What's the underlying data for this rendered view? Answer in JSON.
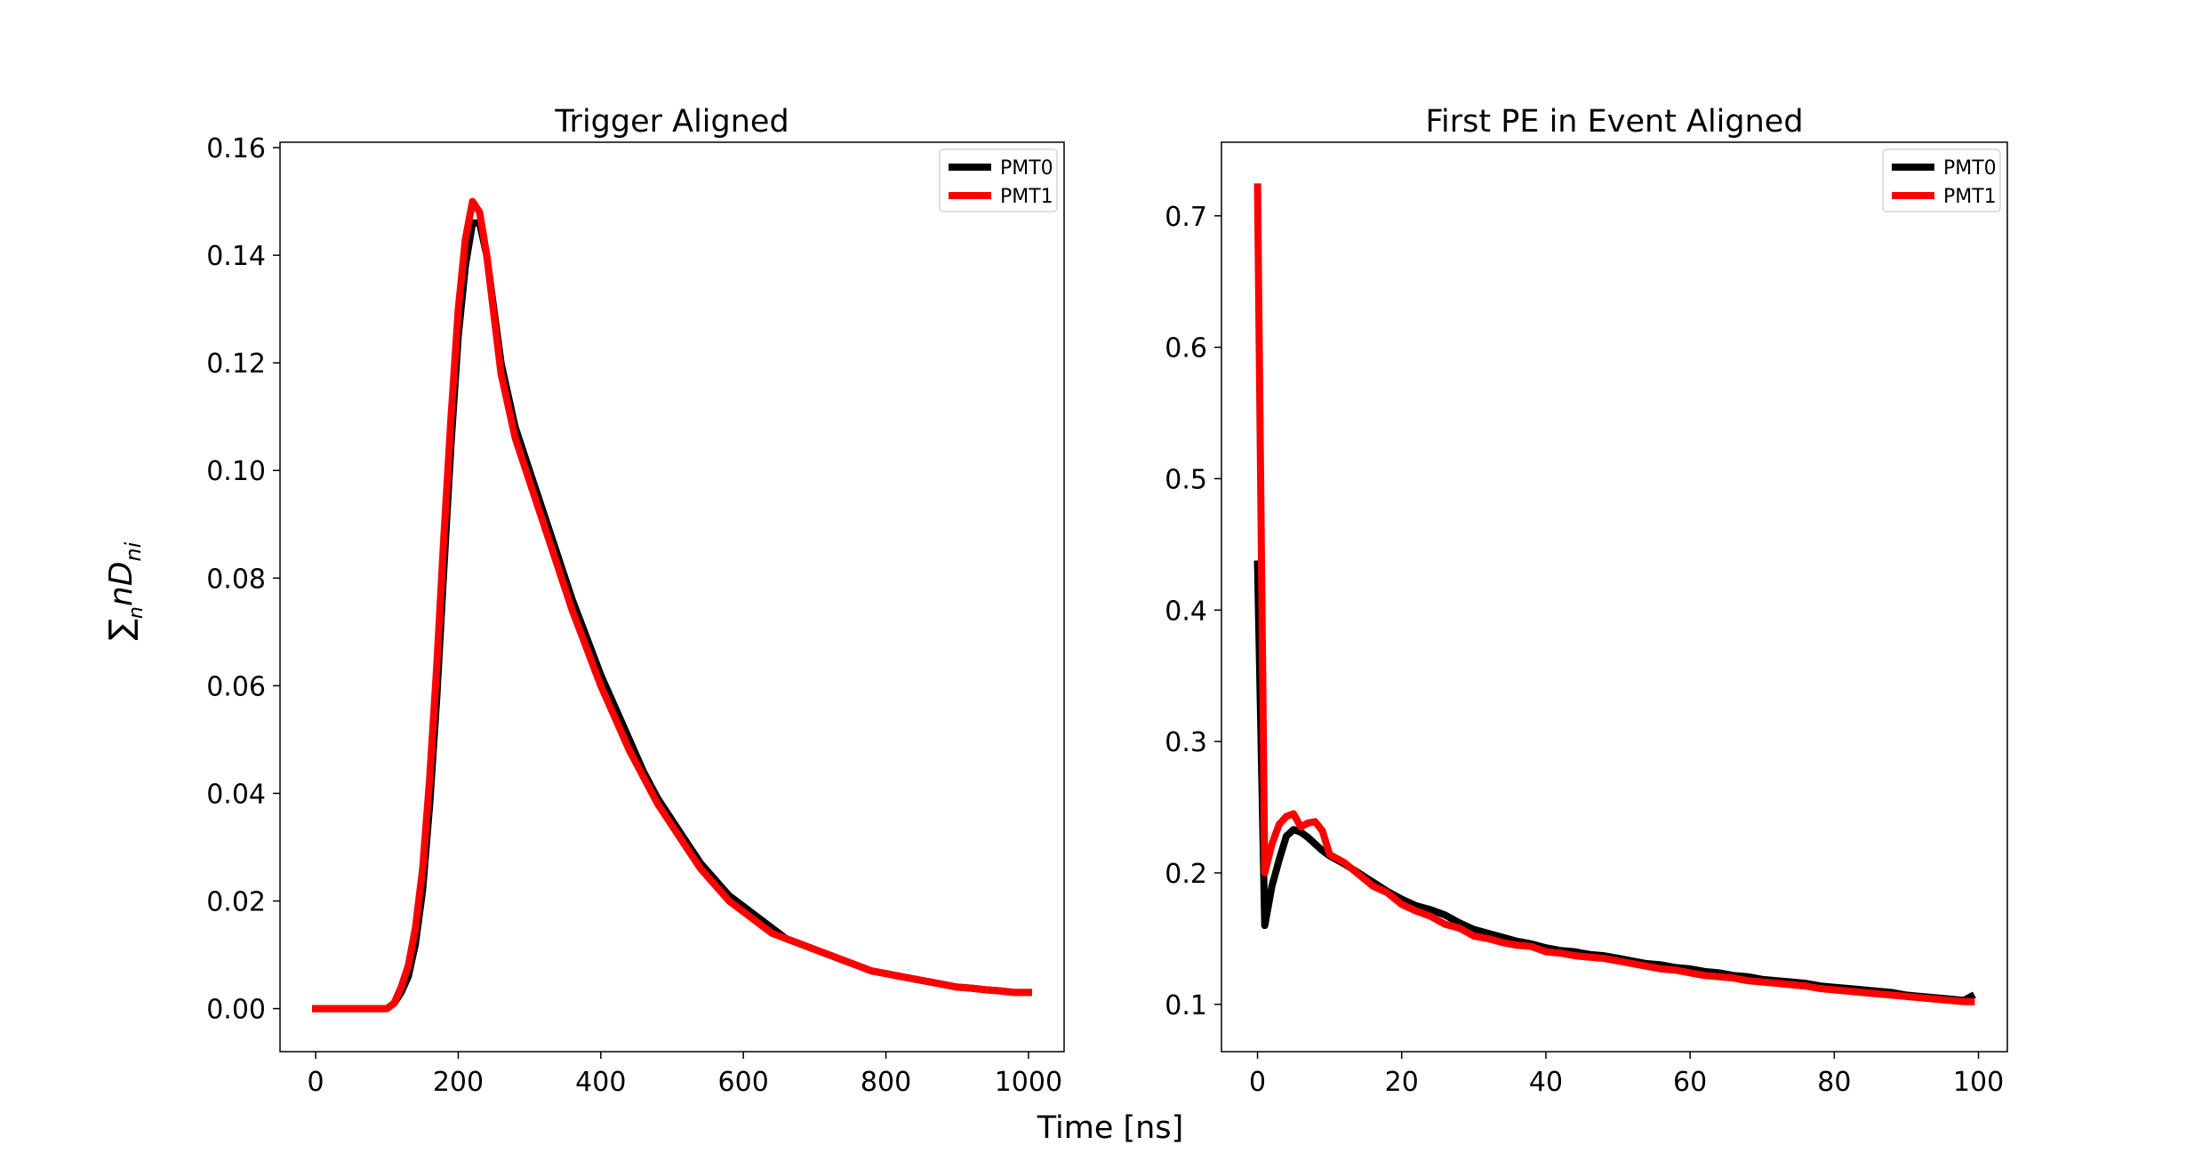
{
  "figure": {
    "xlabel": "Time [ns]",
    "ylabel": {
      "sum": "∑",
      "sub": "n",
      "main": "nD",
      "main_sub": "ni"
    }
  },
  "chart_data": [
    {
      "type": "line",
      "title": "Trigger Aligned",
      "xlim": [
        -50,
        1050
      ],
      "ylim": [
        -0.008,
        0.161
      ],
      "x_ticks": [
        0,
        200,
        400,
        600,
        800,
        1000
      ],
      "x_tick_labels": [
        "0",
        "200",
        "400",
        "600",
        "800",
        "1000"
      ],
      "y_ticks": [
        0.0,
        0.02,
        0.04,
        0.06,
        0.08,
        0.1,
        0.12,
        0.14,
        0.16
      ],
      "y_tick_labels": [
        "0.00",
        "0.02",
        "0.04",
        "0.06",
        "0.08",
        "0.10",
        "0.12",
        "0.14",
        "0.16"
      ],
      "grid": false,
      "legend": "top-right",
      "series": [
        {
          "name": "PMT0",
          "color": "#000000",
          "x": [
            0,
            50,
            100,
            110,
            120,
            130,
            140,
            150,
            160,
            170,
            180,
            190,
            200,
            210,
            220,
            230,
            240,
            250,
            260,
            280,
            300,
            320,
            340,
            360,
            380,
            400,
            420,
            440,
            460,
            480,
            500,
            520,
            540,
            560,
            580,
            600,
            620,
            640,
            660,
            680,
            700,
            720,
            740,
            760,
            780,
            800,
            820,
            840,
            860,
            880,
            900,
            920,
            940,
            960,
            980,
            1000
          ],
          "y": [
            0,
            0,
            0,
            0.001,
            0.003,
            0.006,
            0.012,
            0.022,
            0.038,
            0.058,
            0.082,
            0.105,
            0.125,
            0.138,
            0.146,
            0.146,
            0.14,
            0.13,
            0.12,
            0.108,
            0.1,
            0.092,
            0.084,
            0.076,
            0.069,
            0.062,
            0.056,
            0.05,
            0.044,
            0.039,
            0.035,
            0.031,
            0.027,
            0.024,
            0.021,
            0.019,
            0.017,
            0.015,
            0.013,
            0.012,
            0.011,
            0.01,
            0.009,
            0.008,
            0.007,
            0.0065,
            0.006,
            0.0055,
            0.005,
            0.0045,
            0.004,
            0.0038,
            0.0035,
            0.0033,
            0.003,
            0.003
          ]
        },
        {
          "name": "PMT1",
          "color": "#ff0000",
          "x": [
            0,
            50,
            100,
            110,
            120,
            130,
            140,
            150,
            160,
            170,
            180,
            190,
            200,
            210,
            220,
            230,
            240,
            250,
            260,
            280,
            300,
            320,
            340,
            360,
            380,
            400,
            420,
            440,
            460,
            480,
            500,
            520,
            540,
            560,
            580,
            600,
            620,
            640,
            660,
            680,
            700,
            720,
            740,
            760,
            780,
            800,
            820,
            840,
            860,
            880,
            900,
            920,
            940,
            960,
            980,
            1000
          ],
          "y": [
            0,
            0,
            0,
            0.001,
            0.004,
            0.008,
            0.015,
            0.026,
            0.043,
            0.064,
            0.088,
            0.11,
            0.13,
            0.143,
            0.15,
            0.148,
            0.14,
            0.129,
            0.118,
            0.106,
            0.098,
            0.09,
            0.082,
            0.074,
            0.067,
            0.06,
            0.054,
            0.048,
            0.043,
            0.038,
            0.034,
            0.03,
            0.026,
            0.023,
            0.02,
            0.018,
            0.016,
            0.014,
            0.013,
            0.012,
            0.011,
            0.01,
            0.009,
            0.008,
            0.007,
            0.0065,
            0.006,
            0.0055,
            0.005,
            0.0045,
            0.004,
            0.0038,
            0.0035,
            0.0033,
            0.003,
            0.003
          ]
        }
      ]
    },
    {
      "type": "line",
      "title": "First PE in Event Aligned",
      "xlim": [
        -5,
        104
      ],
      "ylim": [
        0.064,
        0.756
      ],
      "x_ticks": [
        0,
        20,
        40,
        60,
        80,
        100
      ],
      "x_tick_labels": [
        "0",
        "20",
        "40",
        "60",
        "80",
        "100"
      ],
      "y_ticks": [
        0.1,
        0.2,
        0.3,
        0.4,
        0.5,
        0.6,
        0.7
      ],
      "y_tick_labels": [
        "0.1",
        "0.2",
        "0.3",
        "0.4",
        "0.5",
        "0.6",
        "0.7"
      ],
      "grid": false,
      "legend": "top-right",
      "series": [
        {
          "name": "PMT0",
          "color": "#000000",
          "x": [
            0,
            1,
            2,
            3,
            4,
            5,
            6,
            7,
            8,
            9,
            10,
            12,
            14,
            16,
            18,
            20,
            22,
            24,
            26,
            28,
            30,
            32,
            34,
            36,
            38,
            40,
            42,
            44,
            46,
            48,
            50,
            52,
            54,
            56,
            58,
            60,
            62,
            64,
            66,
            68,
            70,
            72,
            74,
            76,
            78,
            80,
            82,
            84,
            86,
            88,
            90,
            92,
            94,
            96,
            98,
            99
          ],
          "y": [
            0.435,
            0.16,
            0.19,
            0.21,
            0.228,
            0.233,
            0.231,
            0.227,
            0.222,
            0.217,
            0.213,
            0.207,
            0.2,
            0.193,
            0.186,
            0.18,
            0.175,
            0.172,
            0.168,
            0.162,
            0.157,
            0.154,
            0.151,
            0.148,
            0.146,
            0.143,
            0.141,
            0.14,
            0.138,
            0.137,
            0.135,
            0.133,
            0.131,
            0.13,
            0.128,
            0.127,
            0.125,
            0.124,
            0.122,
            0.121,
            0.119,
            0.118,
            0.117,
            0.116,
            0.114,
            0.113,
            0.112,
            0.111,
            0.11,
            0.109,
            0.107,
            0.106,
            0.105,
            0.104,
            0.103,
            0.106
          ]
        },
        {
          "name": "PMT1",
          "color": "#ff0000",
          "x": [
            0,
            1,
            2,
            3,
            4,
            5,
            6,
            7,
            8,
            9,
            10,
            12,
            14,
            16,
            18,
            20,
            22,
            24,
            26,
            28,
            30,
            32,
            34,
            36,
            38,
            40,
            42,
            44,
            46,
            48,
            50,
            52,
            54,
            56,
            58,
            60,
            62,
            64,
            66,
            68,
            70,
            72,
            74,
            76,
            78,
            80,
            82,
            84,
            86,
            88,
            90,
            92,
            94,
            96,
            98,
            99
          ],
          "y": [
            0.722,
            0.2,
            0.222,
            0.237,
            0.243,
            0.245,
            0.235,
            0.238,
            0.239,
            0.232,
            0.214,
            0.208,
            0.199,
            0.19,
            0.185,
            0.176,
            0.171,
            0.167,
            0.161,
            0.158,
            0.152,
            0.15,
            0.147,
            0.145,
            0.144,
            0.14,
            0.139,
            0.137,
            0.136,
            0.135,
            0.133,
            0.131,
            0.129,
            0.127,
            0.126,
            0.124,
            0.122,
            0.121,
            0.12,
            0.118,
            0.117,
            0.116,
            0.115,
            0.114,
            0.112,
            0.111,
            0.11,
            0.109,
            0.108,
            0.107,
            0.106,
            0.105,
            0.104,
            0.103,
            0.102,
            0.102
          ]
        }
      ]
    }
  ]
}
